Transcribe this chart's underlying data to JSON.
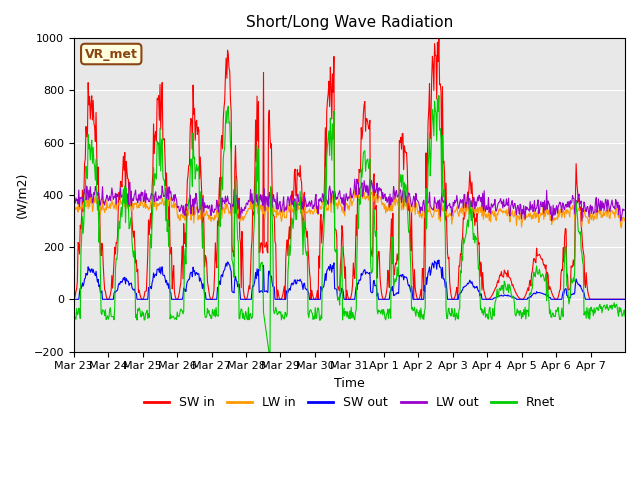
{
  "title": "Short/Long Wave Radiation",
  "xlabel": "Time",
  "ylabel": "(W/m2)",
  "ylim": [
    -200,
    1000
  ],
  "yticks": [
    -200,
    0,
    200,
    400,
    600,
    800,
    1000
  ],
  "x_labels": [
    "Mar 23",
    "Mar 24",
    "Mar 25",
    "Mar 26",
    "Mar 27",
    "Mar 28",
    "Mar 29",
    "Mar 30",
    "Mar 31",
    "Apr 1",
    "Apr 2",
    "Apr 3",
    "Apr 4",
    "Apr 5",
    "Apr 6",
    "Apr 7"
  ],
  "legend_labels": [
    "SW in",
    "LW in",
    "SW out",
    "LW out",
    "Rnet"
  ],
  "colors": {
    "SW_in": "#ff0000",
    "LW_in": "#ff9900",
    "SW_out": "#0000ff",
    "LW_out": "#9900cc",
    "Rnet": "#00cc00"
  },
  "station_label": "VR_met",
  "background_color": "#e8e8e8",
  "n_days": 16,
  "points_per_day": 48
}
